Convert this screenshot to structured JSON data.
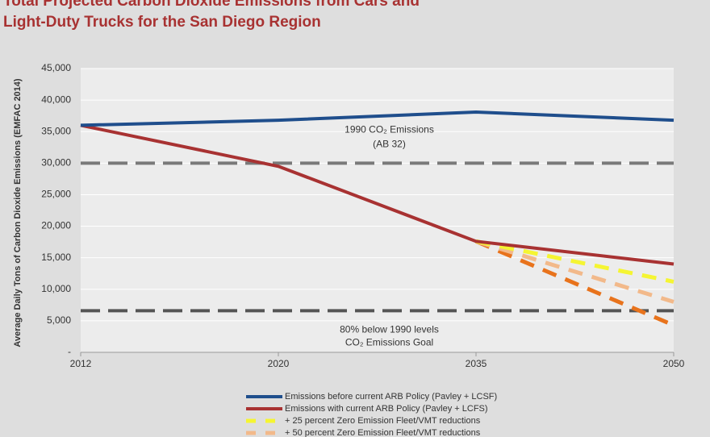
{
  "chart_data": {
    "type": "line",
    "title": [
      "Total Projected Carbon Dioxide Emissions from Cars and",
      "Light-Duty Trucks for the San Diego Region"
    ],
    "y_label": "Average Daily Tons of Carbon Dioxide Emissions (EMFAC 2014)",
    "categories": [
      "2012",
      "2020",
      "2035",
      "2050"
    ],
    "ylim": [
      0,
      45000
    ],
    "yticks": [
      {
        "value": 0,
        "label": "-"
      },
      {
        "value": 5000,
        "label": "5,000"
      },
      {
        "value": 10000,
        "label": "10,000"
      },
      {
        "value": 15000,
        "label": "15,000"
      },
      {
        "value": 20000,
        "label": "20,000"
      },
      {
        "value": 25000,
        "label": "25,000"
      },
      {
        "value": 30000,
        "label": "30,000"
      },
      {
        "value": 35000,
        "label": "35,000"
      },
      {
        "value": 40000,
        "label": "40,000"
      },
      {
        "value": 45000,
        "label": "45,000"
      }
    ],
    "grid": true,
    "series": [
      {
        "name": "Emissions before current ARB Policy (Pavley + LCSF)",
        "color": "#1f4e8c",
        "style": "solid",
        "values": [
          36000,
          36800,
          38100,
          36800
        ]
      },
      {
        "name": "Emissions with current ARB Policy (Pavley + LCFS)",
        "color": "#a83232",
        "style": "solid",
        "values": [
          36000,
          29500,
          17600,
          14000
        ]
      },
      {
        "name": "+ 25 percent Zero Emission Fleet/VMT reductions",
        "color": "#f5f532",
        "style": "dashed",
        "values": [
          null,
          null,
          17600,
          11200
        ]
      },
      {
        "name": "+ 50 percent Zero Emission Fleet/VMT reductions",
        "color": "#f2b98a",
        "style": "dashed",
        "values": [
          null,
          null,
          17600,
          8000
        ]
      },
      {
        "color": "#e8731c",
        "style": "dashed",
        "values": [
          null,
          null,
          17600,
          4300
        ]
      }
    ],
    "reference_lines": [
      {
        "value": 30000,
        "color": "#7a7a7a",
        "label": [
          "1990 CO₂ Emissions",
          "(AB 32)"
        ]
      },
      {
        "value": 6600,
        "color": "#555555",
        "label": [
          "80% below 1990 levels",
          "CO₂ Emissions Goal"
        ]
      }
    ]
  }
}
